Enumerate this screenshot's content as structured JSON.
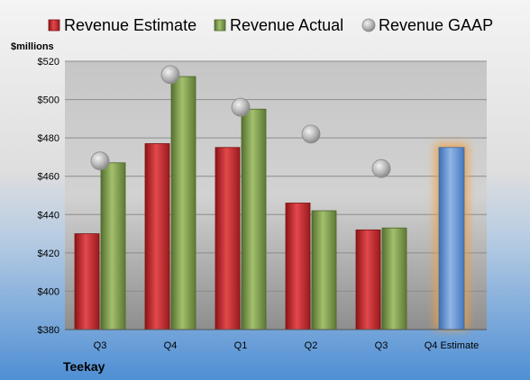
{
  "chart_data": {
    "type": "bar",
    "title": "",
    "company": "Teekay",
    "ylabel": "$millions",
    "xlabel": "",
    "ylim": [
      380,
      520
    ],
    "yticks": [
      380,
      400,
      420,
      440,
      460,
      480,
      500,
      520
    ],
    "ytick_labels": [
      "$380",
      "$400",
      "$420",
      "$440",
      "$460",
      "$480",
      "$500",
      "$520"
    ],
    "grid": true,
    "legend_position": "top",
    "categories": [
      "Q3",
      "Q4",
      "Q1",
      "Q2",
      "Q3",
      "Q4 Estimate"
    ],
    "series": [
      {
        "name": "Revenue Estimate",
        "kind": "bar",
        "color": "#c8282d",
        "values": [
          430,
          477,
          475,
          446,
          432,
          null
        ]
      },
      {
        "name": "Revenue Actual",
        "kind": "bar",
        "color": "#80a050",
        "values": [
          467,
          512,
          495,
          442,
          433,
          null
        ]
      },
      {
        "name": "Revenue GAAP",
        "kind": "marker",
        "color": "#b0b0b0",
        "values": [
          468,
          513,
          496,
          482,
          464,
          null
        ]
      }
    ],
    "forecast": {
      "category_index": 5,
      "value": 475,
      "color": "#6a9ad8",
      "glow_color": "#f0a040"
    }
  }
}
